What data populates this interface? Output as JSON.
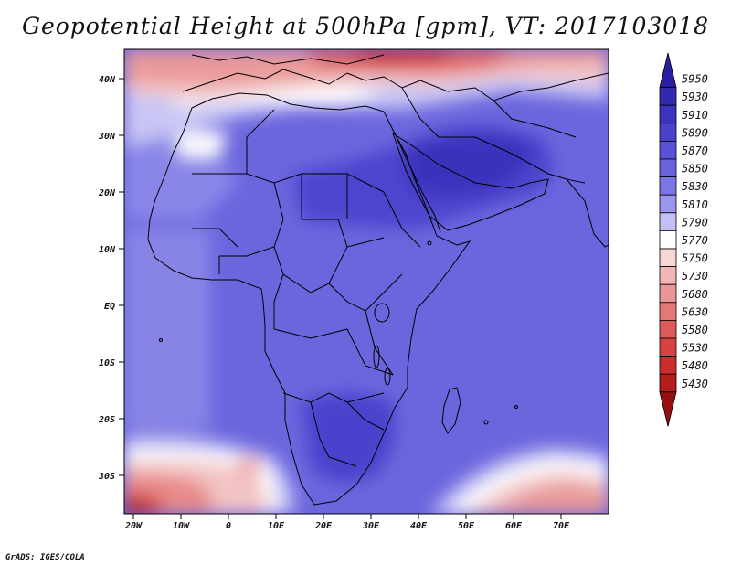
{
  "title": "Geopotential Height at 500hPa [gpm], VT: 2017103018",
  "credit": "GrADS: IGES/COLA",
  "map": {
    "y_labels": [
      "40N",
      "30N",
      "20N",
      "10N",
      "EQ",
      "10S",
      "20S",
      "30S"
    ],
    "x_labels": [
      "20W",
      "10W",
      "0",
      "10E",
      "20E",
      "30E",
      "40E",
      "50E",
      "60E",
      "70E"
    ]
  },
  "colorbar": {
    "levels": [
      "5950",
      "5930",
      "5910",
      "5890",
      "5870",
      "5850",
      "5830",
      "5810",
      "5790",
      "5770",
      "5750",
      "5730",
      "5680",
      "5630",
      "5580",
      "5530",
      "5480",
      "5430"
    ],
    "colors": [
      "#2a1fa0",
      "#3428b2",
      "#3d32c0",
      "#4a40cc",
      "#5a52d6",
      "#6a63de",
      "#7c76e4",
      "#9a96ec",
      "#c2c0f4",
      "#ffffff",
      "#f8d6d6",
      "#f1b5b5",
      "#ea9696",
      "#e47878",
      "#df5a5a",
      "#d84242",
      "#cc2c2c",
      "#b51c1c",
      "#961010"
    ]
  }
}
